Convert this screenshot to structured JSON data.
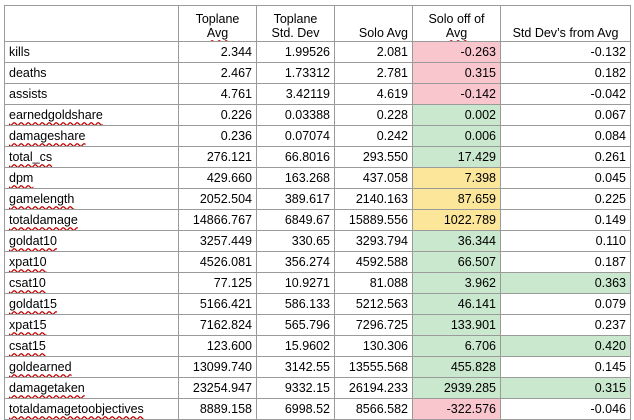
{
  "headers": [
    {
      "l1": "",
      "l2": ""
    },
    {
      "l1": "Toplane",
      "l2": "Avg"
    },
    {
      "l1": "Toplane",
      "l2": "Std. Dev"
    },
    {
      "l1": "",
      "l2": "Solo Avg"
    },
    {
      "l1": "Solo off of",
      "l2": "Avg"
    },
    {
      "l1": "",
      "l2": "Std Dev’s from Avg"
    }
  ],
  "rows": [
    {
      "stat": "kills",
      "top_avg": "2.344",
      "top_std": "1.99526",
      "solo_avg": "2.081",
      "off": "-0.263",
      "off_color": "red",
      "sd": "-0.132",
      "sd_color": ""
    },
    {
      "stat": "deaths",
      "top_avg": "2.467",
      "top_std": "1.73312",
      "solo_avg": "2.781",
      "off": "0.315",
      "off_color": "red",
      "sd": "0.182",
      "sd_color": ""
    },
    {
      "stat": "assists",
      "top_avg": "4.761",
      "top_std": "3.42119",
      "solo_avg": "4.619",
      "off": "-0.142",
      "off_color": "red",
      "sd": "-0.042",
      "sd_color": ""
    },
    {
      "stat": "earnedgoldshare",
      "top_avg": "0.226",
      "top_std": "0.03388",
      "solo_avg": "0.228",
      "off": "0.002",
      "off_color": "green",
      "sd": "0.067",
      "sd_color": ""
    },
    {
      "stat": "damageshare",
      "top_avg": "0.236",
      "top_std": "0.07074",
      "solo_avg": "0.242",
      "off": "0.006",
      "off_color": "green",
      "sd": "0.084",
      "sd_color": ""
    },
    {
      "stat": "total_cs",
      "top_avg": "276.121",
      "top_std": "66.8016",
      "solo_avg": "293.550",
      "off": "17.429",
      "off_color": "green",
      "sd": "0.261",
      "sd_color": ""
    },
    {
      "stat": "dpm",
      "top_avg": "429.660",
      "top_std": "163.268",
      "solo_avg": "437.058",
      "off": "7.398",
      "off_color": "yellow",
      "sd": "0.045",
      "sd_color": ""
    },
    {
      "stat": "gamelength",
      "top_avg": "2052.504",
      "top_std": "389.617",
      "solo_avg": "2140.163",
      "off": "87.659",
      "off_color": "yellow",
      "sd": "0.225",
      "sd_color": ""
    },
    {
      "stat": "totaldamage",
      "top_avg": "14866.767",
      "top_std": "6849.67",
      "solo_avg": "15889.556",
      "off": "1022.789",
      "off_color": "yellow",
      "sd": "0.149",
      "sd_color": ""
    },
    {
      "stat": "goldat10",
      "top_avg": "3257.449",
      "top_std": "330.65",
      "solo_avg": "3293.794",
      "off": "36.344",
      "off_color": "green",
      "sd": "0.110",
      "sd_color": ""
    },
    {
      "stat": "xpat10",
      "top_avg": "4526.081",
      "top_std": "356.274",
      "solo_avg": "4592.588",
      "off": "66.507",
      "off_color": "green",
      "sd": "0.187",
      "sd_color": ""
    },
    {
      "stat": "csat10",
      "top_avg": "77.125",
      "top_std": "10.9271",
      "solo_avg": "81.088",
      "off": "3.962",
      "off_color": "green",
      "sd": "0.363",
      "sd_color": "green"
    },
    {
      "stat": "goldat15",
      "top_avg": "5166.421",
      "top_std": "586.133",
      "solo_avg": "5212.563",
      "off": "46.141",
      "off_color": "green",
      "sd": "0.079",
      "sd_color": ""
    },
    {
      "stat": "xpat15",
      "top_avg": "7162.824",
      "top_std": "565.796",
      "solo_avg": "7296.725",
      "off": "133.901",
      "off_color": "green",
      "sd": "0.237",
      "sd_color": ""
    },
    {
      "stat": "csat15",
      "top_avg": "123.600",
      "top_std": "15.9602",
      "solo_avg": "130.306",
      "off": "6.706",
      "off_color": "green",
      "sd": "0.420",
      "sd_color": "green"
    },
    {
      "stat": "goldearned",
      "top_avg": "13099.740",
      "top_std": "3142.55",
      "solo_avg": "13555.568",
      "off": "455.828",
      "off_color": "green",
      "sd": "0.145",
      "sd_color": ""
    },
    {
      "stat": "damagetaken",
      "top_avg": "23254.947",
      "top_std": "9332.15",
      "solo_avg": "26194.233",
      "off": "2939.285",
      "off_color": "green",
      "sd": "0.315",
      "sd_color": "green"
    },
    {
      "stat": "totaldamagetoobjectives",
      "top_avg": "8889.158",
      "top_std": "6998.52",
      "solo_avg": "8566.582",
      "off": "-322.576",
      "off_color": "red",
      "sd": "-0.046",
      "sd_color": ""
    }
  ]
}
